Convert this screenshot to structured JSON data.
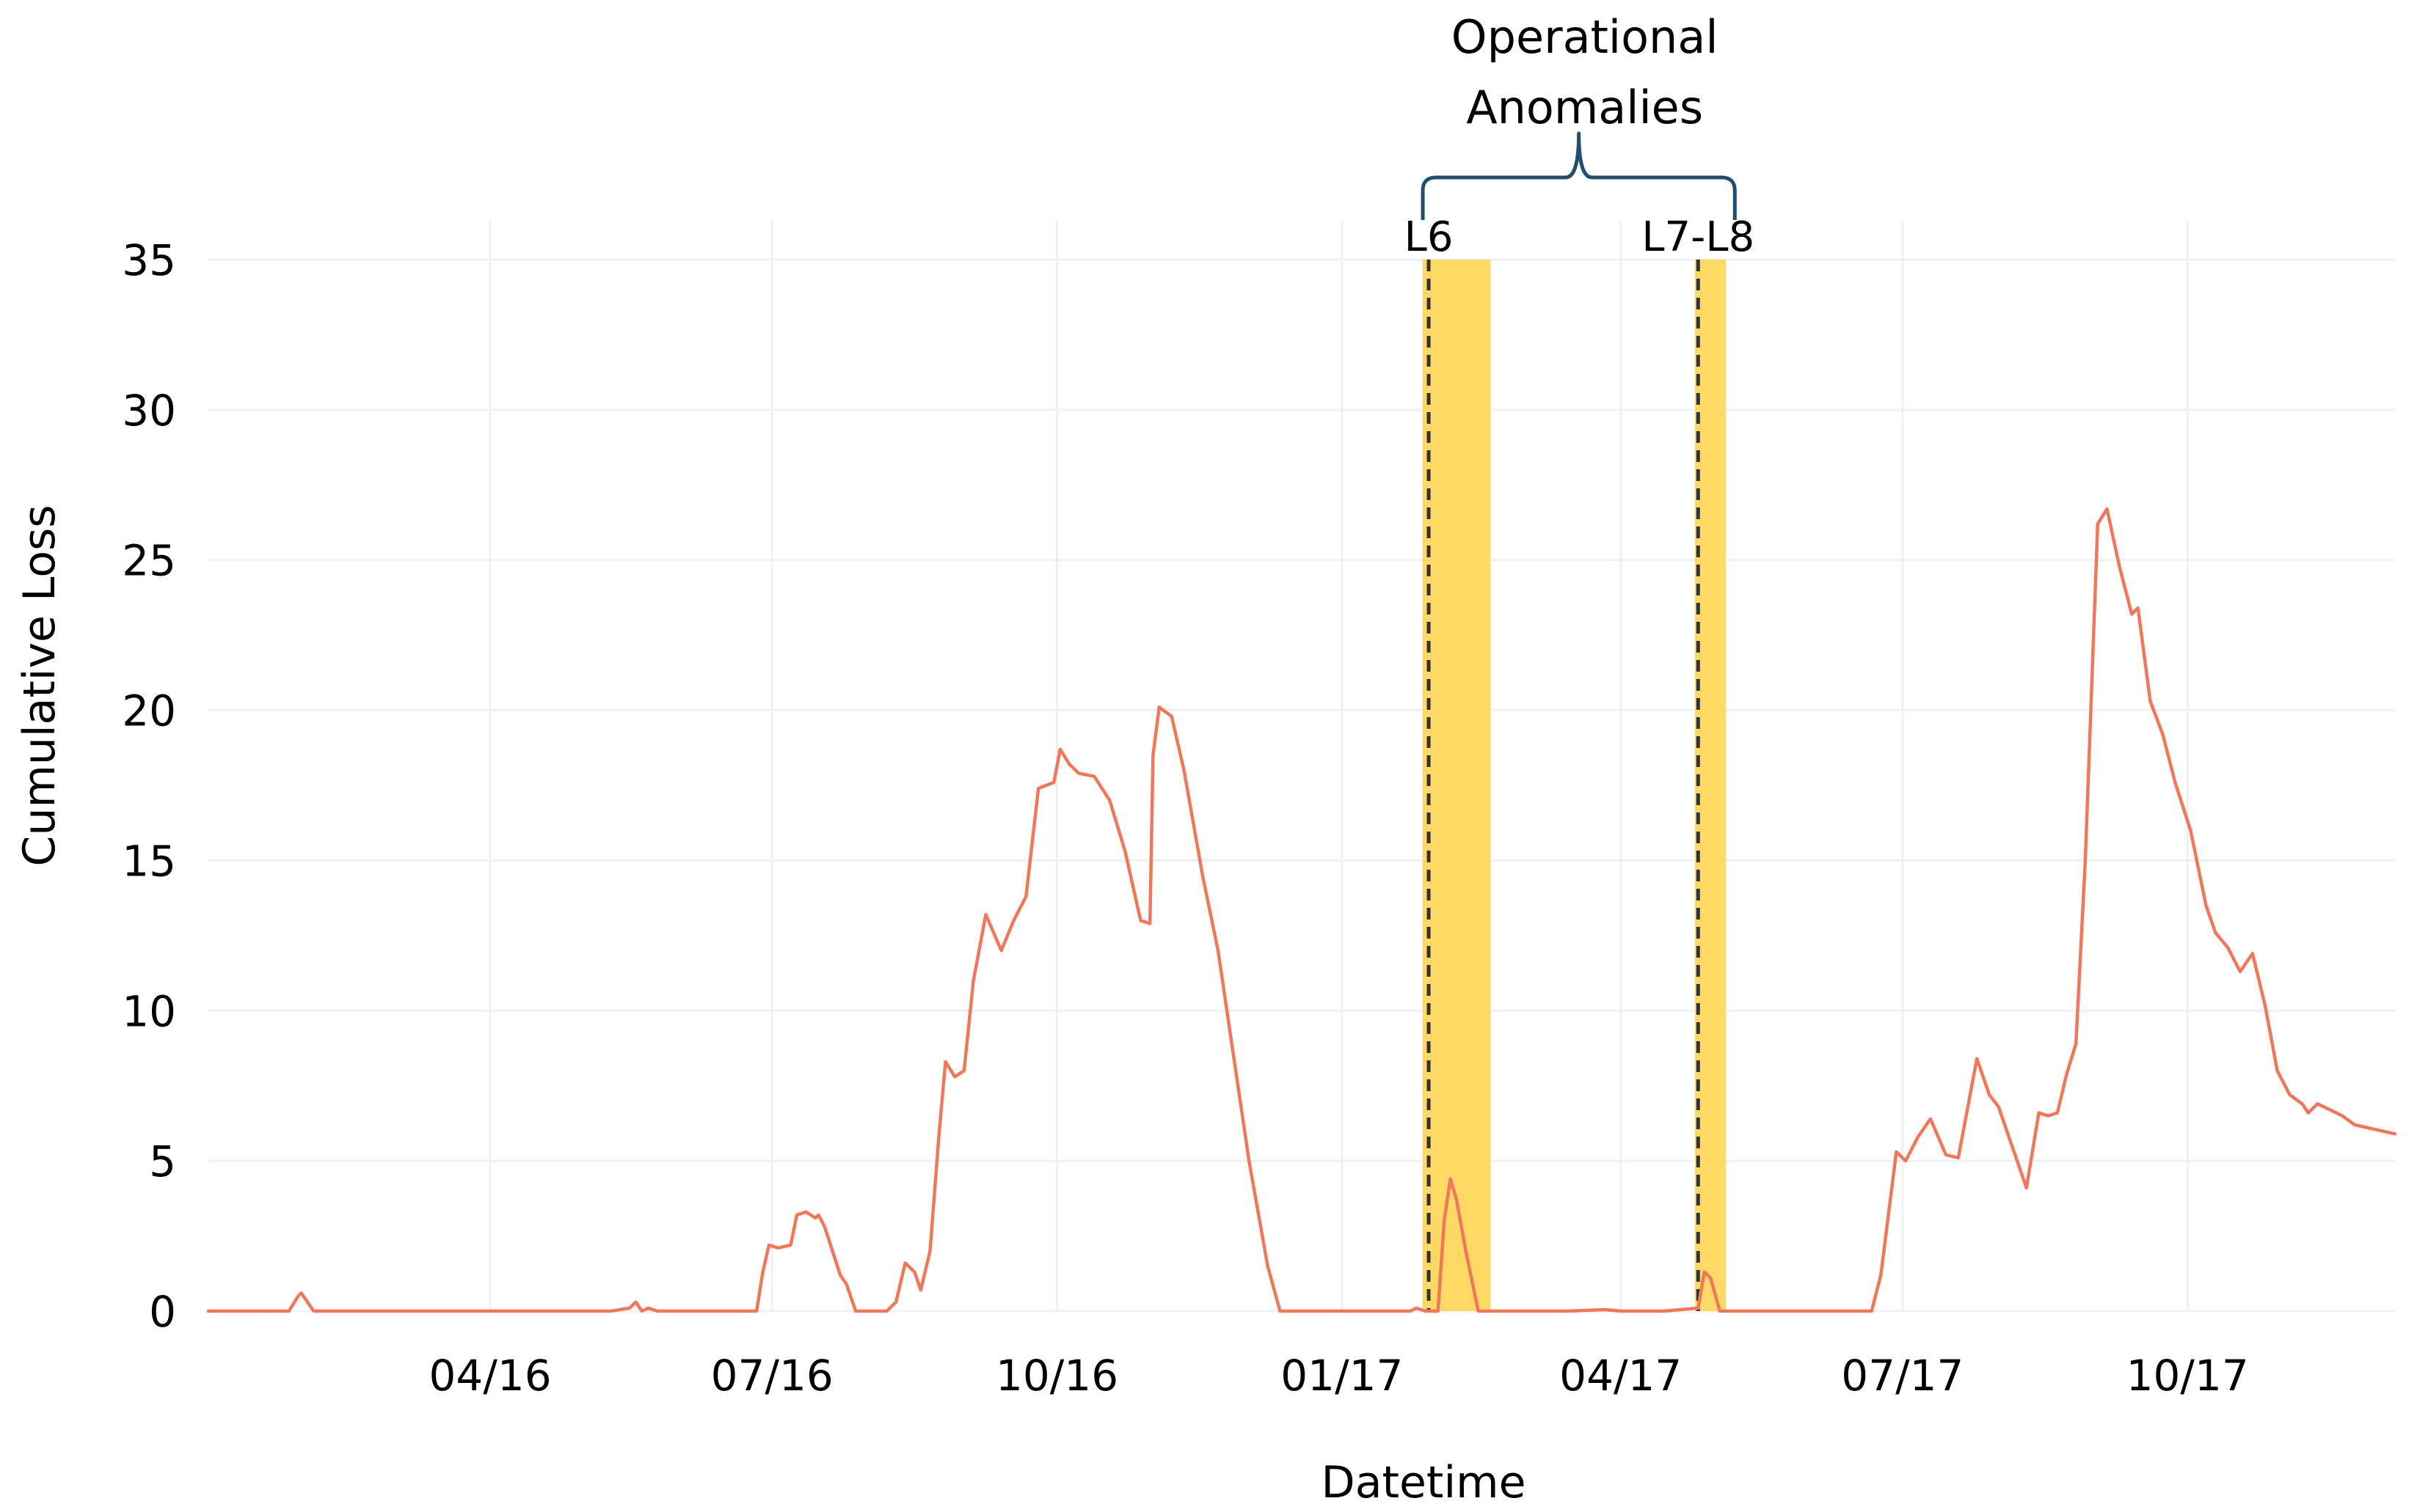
{
  "chart_data": {
    "type": "line",
    "xlabel": "Datetime",
    "ylabel": "Cumulative Loss",
    "ylim": [
      0,
      35
    ],
    "yticks": [
      0,
      5,
      10,
      15,
      20,
      25,
      30,
      35
    ],
    "xlim": [
      "2016-01-01",
      "2017-12-07"
    ],
    "xticks": [
      {
        "date": "2016-04-01",
        "label": "04/16"
      },
      {
        "date": "2016-07-01",
        "label": "07/16"
      },
      {
        "date": "2016-10-01",
        "label": "10/16"
      },
      {
        "date": "2017-01-01",
        "label": "01/17"
      },
      {
        "date": "2017-04-01",
        "label": "04/17"
      },
      {
        "date": "2017-07-01",
        "label": "07/17"
      },
      {
        "date": "2017-10-01",
        "label": "10/17"
      }
    ],
    "grid": true,
    "line_color": "#f0785a",
    "band_color": "#ffd966",
    "series": [
      {
        "points": [
          [
            "2016-01-01",
            0
          ],
          [
            "2016-01-27",
            0
          ],
          [
            "2016-01-30",
            0.5
          ],
          [
            "2016-01-31",
            0.6
          ],
          [
            "2016-02-02",
            0.3
          ],
          [
            "2016-02-04",
            0
          ],
          [
            "2016-02-15",
            0
          ],
          [
            "2016-03-15",
            0
          ],
          [
            "2016-04-15",
            0
          ],
          [
            "2016-05-10",
            0
          ],
          [
            "2016-05-16",
            0.1
          ],
          [
            "2016-05-18",
            0.3
          ],
          [
            "2016-05-20",
            0
          ],
          [
            "2016-05-22",
            0.1
          ],
          [
            "2016-05-25",
            0
          ],
          [
            "2016-06-15",
            0
          ],
          [
            "2016-06-26",
            0
          ],
          [
            "2016-06-28",
            1.3
          ],
          [
            "2016-06-30",
            2.2
          ],
          [
            "2016-07-03",
            2.1
          ],
          [
            "2016-07-07",
            2.2
          ],
          [
            "2016-07-09",
            3.2
          ],
          [
            "2016-07-12",
            3.3
          ],
          [
            "2016-07-15",
            3.1
          ],
          [
            "2016-07-16",
            3.2
          ],
          [
            "2016-07-18",
            2.8
          ],
          [
            "2016-07-23",
            1.2
          ],
          [
            "2016-07-25",
            0.9
          ],
          [
            "2016-07-28",
            0
          ],
          [
            "2016-08-07",
            0
          ],
          [
            "2016-08-10",
            0.3
          ],
          [
            "2016-08-13",
            1.6
          ],
          [
            "2016-08-16",
            1.3
          ],
          [
            "2016-08-18",
            0.7
          ],
          [
            "2016-08-21",
            2
          ],
          [
            "2016-08-24",
            6
          ],
          [
            "2016-08-26",
            8.3
          ],
          [
            "2016-08-29",
            7.8
          ],
          [
            "2016-09-01",
            8
          ],
          [
            "2016-09-04",
            11
          ],
          [
            "2016-09-08",
            13.2
          ],
          [
            "2016-09-13",
            12
          ],
          [
            "2016-09-17",
            13
          ],
          [
            "2016-09-21",
            13.8
          ],
          [
            "2016-09-25",
            17.4
          ],
          [
            "2016-09-30",
            17.6
          ],
          [
            "2016-10-02",
            18.7
          ],
          [
            "2016-10-05",
            18.2
          ],
          [
            "2016-10-08",
            17.9
          ],
          [
            "2016-10-13",
            17.8
          ],
          [
            "2016-10-18",
            17
          ],
          [
            "2016-10-23",
            15.3
          ],
          [
            "2016-10-28",
            13
          ],
          [
            "2016-10-31",
            12.9
          ],
          [
            "2016-11-01",
            18.5
          ],
          [
            "2016-11-03",
            20.1
          ],
          [
            "2016-11-07",
            19.8
          ],
          [
            "2016-11-11",
            18
          ],
          [
            "2016-11-17",
            14.5
          ],
          [
            "2016-11-22",
            12
          ],
          [
            "2016-11-27",
            8.5
          ],
          [
            "2016-12-02",
            5
          ],
          [
            "2016-12-08",
            1.5
          ],
          [
            "2016-12-12",
            0
          ],
          [
            "2016-12-25",
            0
          ],
          [
            "2017-01-10",
            0
          ],
          [
            "2017-01-23",
            0
          ],
          [
            "2017-01-25",
            0.1
          ],
          [
            "2017-01-28",
            0
          ],
          [
            "2017-02-01",
            0
          ],
          [
            "2017-02-03",
            3
          ],
          [
            "2017-02-05",
            4.4
          ],
          [
            "2017-02-07",
            3.7
          ],
          [
            "2017-02-10",
            2
          ],
          [
            "2017-02-14",
            0
          ],
          [
            "2017-03-01",
            0
          ],
          [
            "2017-03-15",
            0
          ],
          [
            "2017-03-27",
            0.05
          ],
          [
            "2017-04-01",
            0
          ],
          [
            "2017-04-15",
            0
          ],
          [
            "2017-04-26",
            0.1
          ],
          [
            "2017-04-28",
            1.3
          ],
          [
            "2017-04-30",
            1.1
          ],
          [
            "2017-05-03",
            0
          ],
          [
            "2017-05-20",
            0
          ],
          [
            "2017-06-10",
            0
          ],
          [
            "2017-06-21",
            0
          ],
          [
            "2017-06-24",
            1.2
          ],
          [
            "2017-06-29",
            5.3
          ],
          [
            "2017-07-02",
            5
          ],
          [
            "2017-07-06",
            5.8
          ],
          [
            "2017-07-10",
            6.4
          ],
          [
            "2017-07-15",
            5.2
          ],
          [
            "2017-07-19",
            5.1
          ],
          [
            "2017-07-25",
            8.4
          ],
          [
            "2017-07-29",
            7.2
          ],
          [
            "2017-08-01",
            6.8
          ],
          [
            "2017-08-05",
            5.6
          ],
          [
            "2017-08-10",
            4.1
          ],
          [
            "2017-08-14",
            6.6
          ],
          [
            "2017-08-17",
            6.5
          ],
          [
            "2017-08-20",
            6.6
          ],
          [
            "2017-08-23",
            7.9
          ],
          [
            "2017-08-26",
            8.9
          ],
          [
            "2017-08-29",
            15
          ],
          [
            "2017-09-02",
            26.2
          ],
          [
            "2017-09-05",
            26.7
          ],
          [
            "2017-09-09",
            24.8
          ],
          [
            "2017-09-13",
            23.2
          ],
          [
            "2017-09-15",
            23.4
          ],
          [
            "2017-09-19",
            20.3
          ],
          [
            "2017-09-23",
            19.2
          ],
          [
            "2017-09-27",
            17.6
          ],
          [
            "2017-10-02",
            16
          ],
          [
            "2017-10-07",
            13.5
          ],
          [
            "2017-10-10",
            12.6
          ],
          [
            "2017-10-14",
            12.1
          ],
          [
            "2017-10-18",
            11.3
          ],
          [
            "2017-10-22",
            11.9
          ],
          [
            "2017-10-26",
            10.2
          ],
          [
            "2017-10-30",
            8
          ],
          [
            "2017-11-03",
            7.2
          ],
          [
            "2017-11-07",
            6.9
          ],
          [
            "2017-11-09",
            6.6
          ],
          [
            "2017-11-12",
            6.9
          ],
          [
            "2017-11-16",
            6.7
          ],
          [
            "2017-11-20",
            6.5
          ],
          [
            "2017-11-24",
            6.2
          ],
          [
            "2017-12-07",
            5.9
          ]
        ]
      }
    ],
    "bands": [
      {
        "start": "2017-01-27",
        "end": "2017-02-18"
      },
      {
        "start": "2017-04-25",
        "end": "2017-05-05"
      }
    ],
    "markers": [
      {
        "date": "2017-01-29",
        "label": "L6"
      },
      {
        "date": "2017-04-26",
        "label": "L7-L8"
      }
    ],
    "annotation": {
      "title_lines": [
        "Operational",
        "Anomalies"
      ],
      "start": "2017-01-29",
      "end": "2017-05-05"
    }
  }
}
